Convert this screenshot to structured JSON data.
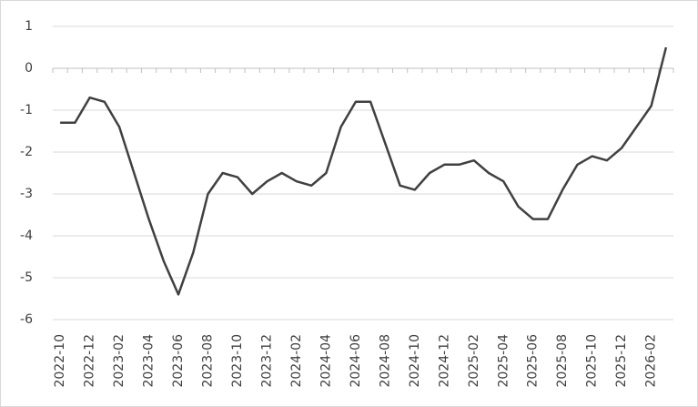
{
  "chart_data": {
    "type": "line",
    "categories": [
      "2022-10",
      null,
      "2022-12",
      null,
      "2023-02",
      null,
      "2023-04",
      null,
      "2023-06",
      null,
      "2023-08",
      null,
      "2023-10",
      null,
      "2023-12",
      null,
      "2024-02",
      null,
      "2024-04",
      null,
      "2024-06",
      null,
      "2024-08",
      null,
      "2024-10",
      null,
      "2024-12",
      null,
      "2025-02",
      null,
      "2025-04",
      null,
      "2025-06",
      null,
      "2025-08",
      null,
      "2025-10",
      null,
      "2025-12",
      null,
      "2026-02",
      null
    ],
    "series": [
      {
        "color": "#404040",
        "values": [
          -1.3,
          -1.3,
          -0.7,
          -0.8,
          -1.4,
          -2.5,
          -3.6,
          -4.6,
          -5.4,
          -4.4,
          -3.0,
          -2.5,
          -2.6,
          -3.0,
          -2.7,
          -2.5,
          -2.7,
          -2.8,
          -2.5,
          -1.4,
          -0.8,
          -0.8,
          -1.8,
          -2.8,
          -2.9,
          -2.5,
          -2.3,
          -2.3,
          -2.2,
          -2.5,
          -2.7,
          -3.3,
          -3.6,
          -3.6,
          -2.9,
          -2.3,
          -2.1,
          -2.2,
          -1.9,
          -1.4,
          -0.9,
          0.5
        ]
      }
    ],
    "ylim": [
      -6,
      1
    ],
    "yticks": [
      1,
      0,
      -1,
      -2,
      -3,
      -4,
      -5,
      -6
    ],
    "grid": true
  }
}
